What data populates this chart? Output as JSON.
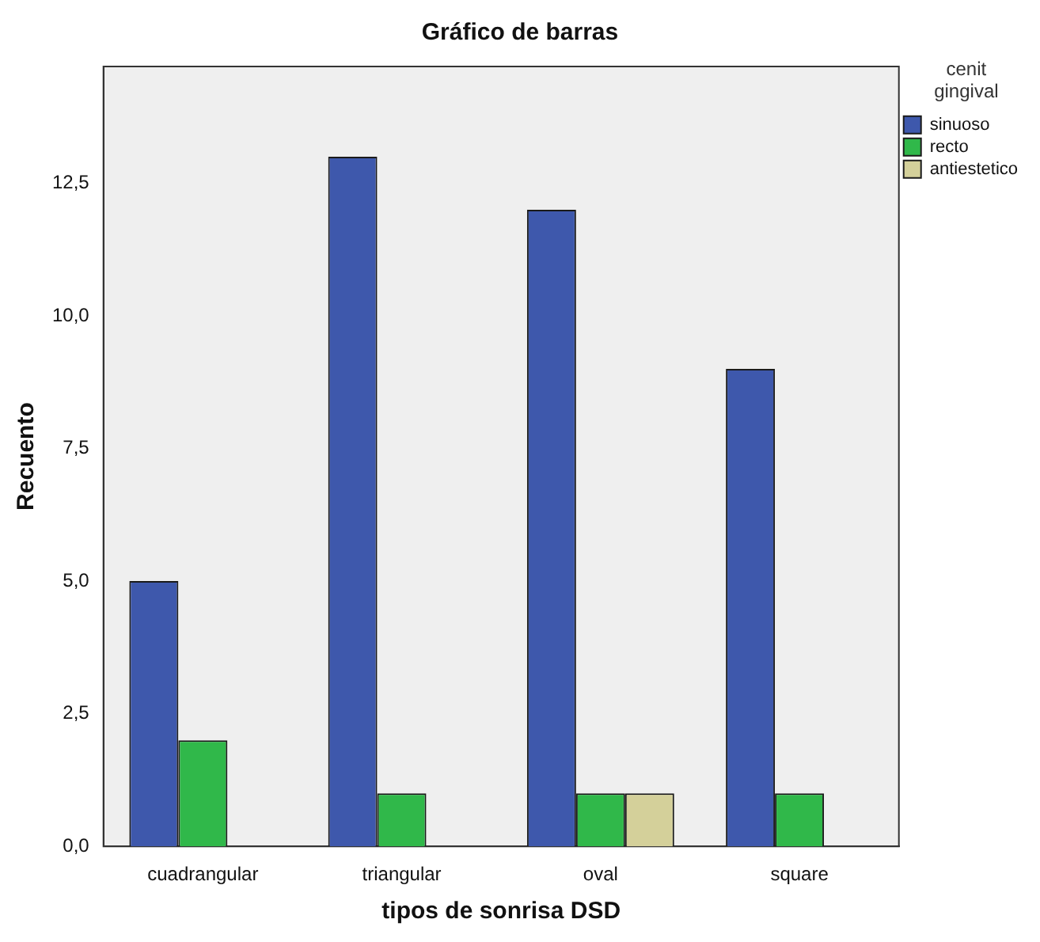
{
  "chart_data": {
    "type": "bar",
    "title": "Gráfico de barras",
    "xlabel": "tipos de sonrisa DSD",
    "ylabel": "Recuento",
    "legend_title": "cenit gingival",
    "categories": [
      "cuadrangular",
      "triangular",
      "oval",
      "square"
    ],
    "series": [
      {
        "name": "sinuoso",
        "color": "#3e58ac",
        "values": [
          5,
          13,
          12,
          9
        ]
      },
      {
        "name": "recto",
        "color": "#30b84a",
        "values": [
          2,
          1,
          1,
          1
        ]
      },
      {
        "name": "antiestetico",
        "color": "#d4d09a",
        "values": [
          null,
          null,
          1,
          null
        ]
      }
    ],
    "ylim": [
      0,
      14.7
    ],
    "yticks": [
      {
        "value": 0,
        "label": "0,0"
      },
      {
        "value": 2.5,
        "label": "2,5"
      },
      {
        "value": 5,
        "label": "5,0"
      },
      {
        "value": 7.5,
        "label": "7,5"
      },
      {
        "value": 10,
        "label": "10,0"
      },
      {
        "value": 12.5,
        "label": "12,5"
      }
    ],
    "grid": false,
    "legend": "top right"
  }
}
